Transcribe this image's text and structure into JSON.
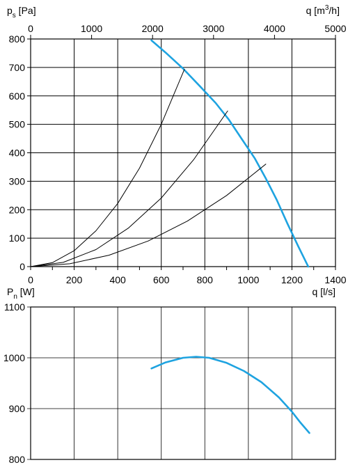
{
  "colors": {
    "curve": "#1EA3E0",
    "grid": "#000000",
    "system": "#000000"
  },
  "chart_data": [
    {
      "type": "line",
      "title": "",
      "ylabel_main": "p",
      "ylabel_sub": "s",
      "ylabel_unit": " [Pa]",
      "xlabel_top_main": "q [m",
      "xlabel_top_sup": "3",
      "xlabel_top_unit": "/h]",
      "xlabel": "q [l/s]",
      "xlim": [
        0,
        1400
      ],
      "ylim": [
        0,
        800
      ],
      "xticks": [
        0,
        200,
        400,
        600,
        800,
        1000,
        1200,
        1400
      ],
      "yticks": [
        0,
        100,
        200,
        300,
        400,
        500,
        600,
        700,
        800
      ],
      "xlim_top": [
        0,
        5000
      ],
      "xticks_top": [
        0,
        1000,
        2000,
        3000,
        4000,
        5000
      ],
      "grid": true,
      "series": [
        {
          "role": "fan-curve",
          "x": [
            555,
            620,
            700,
            780,
            850,
            910,
            970,
            1030,
            1080,
            1130,
            1180,
            1230,
            1275
          ],
          "y": [
            795,
            752,
            696,
            632,
            575,
            517,
            448,
            380,
            310,
            235,
            150,
            70,
            0
          ]
        },
        {
          "role": "system-curve",
          "x": [
            0,
            100,
            200,
            300,
            400,
            500,
            600,
            706
          ],
          "y": [
            0,
            14,
            56,
            126,
            222,
            346,
            500,
            693
          ]
        },
        {
          "role": "system-curve",
          "x": [
            0,
            150,
            300,
            450,
            600,
            750,
            905
          ],
          "y": [
            0,
            15,
            60,
            136,
            241,
            377,
            547
          ]
        },
        {
          "role": "system-curve",
          "x": [
            0,
            180,
            360,
            540,
            720,
            900,
            1080
          ],
          "y": [
            0,
            10,
            40,
            90,
            160,
            250,
            360
          ]
        }
      ]
    },
    {
      "type": "line",
      "ylabel_main": "P",
      "ylabel_sub": "n",
      "ylabel_unit": " [W]",
      "xlim": [
        0,
        1400
      ],
      "ylim": [
        800,
        1100
      ],
      "yticks": [
        800,
        900,
        1000,
        1100
      ],
      "grid": true,
      "series": [
        {
          "role": "power-curve",
          "x": [
            555,
            620,
            700,
            760,
            820,
            900,
            980,
            1060,
            1140,
            1200,
            1240,
            1280
          ],
          "y": [
            979,
            991,
            1000,
            1002,
            1000,
            990,
            974,
            952,
            922,
            894,
            872,
            852
          ]
        }
      ]
    }
  ]
}
